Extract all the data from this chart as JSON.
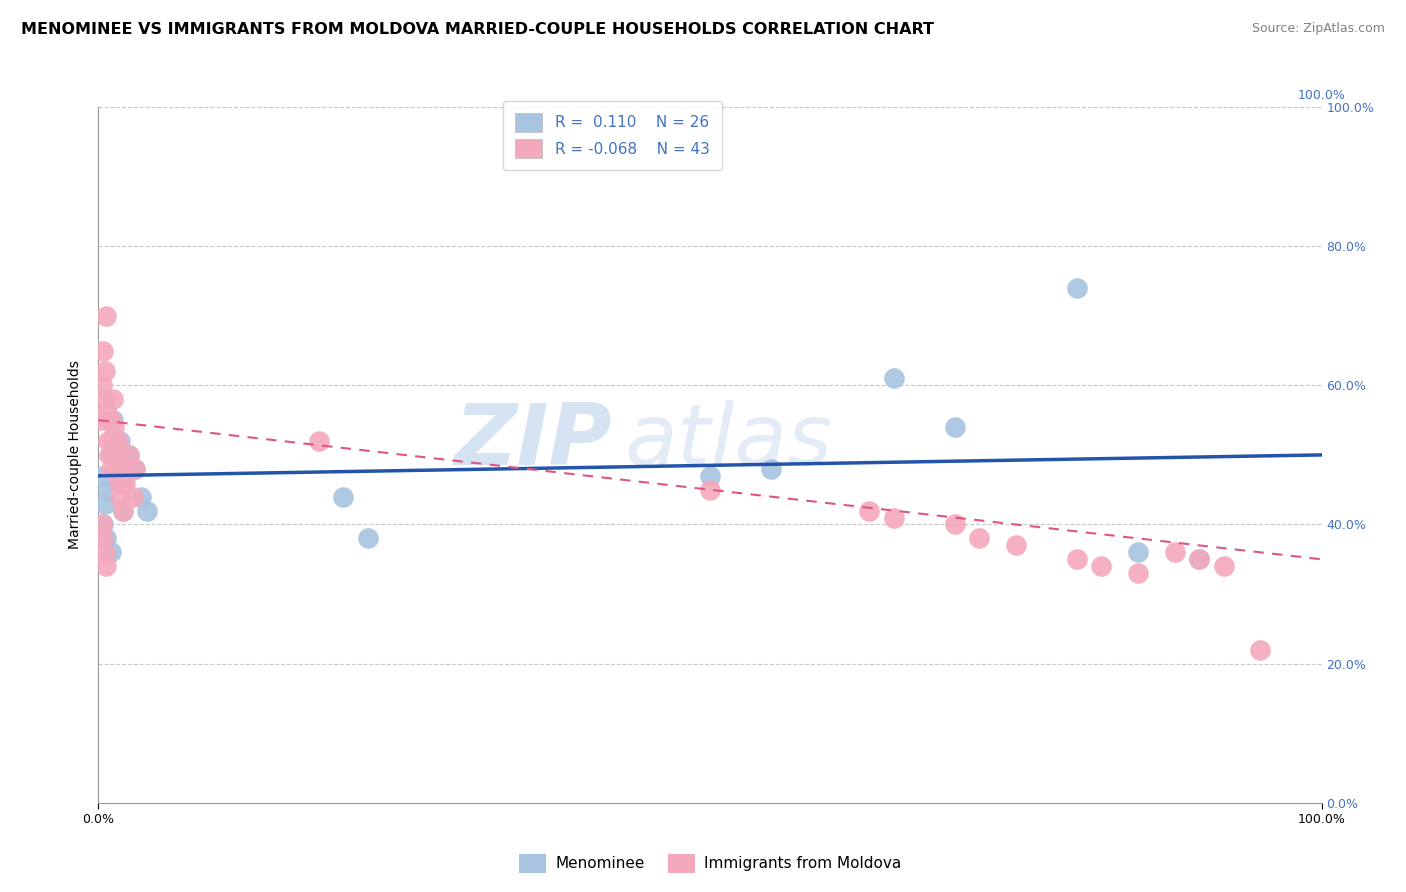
{
  "title": "MENOMINEE VS IMMIGRANTS FROM MOLDOVA MARRIED-COUPLE HOUSEHOLDS CORRELATION CHART",
  "source": "Source: ZipAtlas.com",
  "ylabel": "Married-couple Households",
  "legend_label1": "Menominee",
  "legend_label2": "Immigrants from Moldova",
  "R1": 0.11,
  "N1": 26,
  "R2": -0.068,
  "N2": 43,
  "blue_x": [
    0.3,
    0.5,
    0.8,
    1.0,
    1.2,
    1.5,
    1.8,
    2.0,
    2.5,
    3.0,
    3.5,
    4.0,
    0.4,
    0.6,
    1.0,
    1.5,
    2.0,
    20.0,
    22.0,
    50.0,
    55.0,
    65.0,
    70.0,
    80.0,
    85.0,
    90.0
  ],
  "blue_y": [
    47.0,
    43.0,
    45.0,
    50.0,
    55.0,
    48.0,
    52.0,
    46.0,
    50.0,
    48.0,
    44.0,
    42.0,
    40.0,
    38.0,
    36.0,
    46.0,
    42.0,
    44.0,
    38.0,
    47.0,
    48.0,
    61.0,
    54.0,
    74.0,
    36.0,
    35.0
  ],
  "pink_x": [
    0.2,
    0.3,
    0.4,
    0.5,
    0.5,
    0.6,
    0.7,
    0.8,
    0.9,
    1.0,
    1.0,
    1.1,
    1.2,
    1.3,
    1.4,
    1.5,
    1.6,
    1.7,
    1.8,
    2.0,
    2.0,
    2.2,
    2.5,
    2.8,
    3.0,
    0.3,
    0.4,
    0.5,
    0.6,
    18.0,
    50.0,
    63.0,
    65.0,
    70.0,
    72.0,
    75.0,
    80.0,
    82.0,
    85.0,
    88.0,
    90.0,
    92.0,
    95.0
  ],
  "pink_y": [
    55.0,
    60.0,
    65.0,
    62.0,
    58.0,
    70.0,
    56.0,
    52.0,
    50.0,
    48.0,
    55.0,
    52.0,
    58.0,
    54.0,
    50.0,
    48.0,
    52.0,
    46.0,
    44.0,
    42.0,
    48.0,
    46.0,
    50.0,
    44.0,
    48.0,
    40.0,
    38.0,
    36.0,
    34.0,
    52.0,
    45.0,
    42.0,
    41.0,
    40.0,
    38.0,
    37.0,
    35.0,
    34.0,
    33.0,
    36.0,
    35.0,
    34.0,
    22.0
  ],
  "blue_line_start_y": 47.0,
  "blue_line_end_y": 50.0,
  "pink_line_start_y": 55.0,
  "pink_line_end_y": 35.0,
  "blue_color": "#a8c4e0",
  "pink_color": "#f4a8bc",
  "blue_line_color": "#2255aa",
  "pink_line_color": "#e05580",
  "background_color": "#ffffff",
  "xlim": [
    0,
    100
  ],
  "ylim": [
    0,
    100
  ],
  "ytick_values": [
    0,
    20,
    40,
    60,
    80,
    100
  ],
  "grid_color": "#c8c8c8",
  "title_fontsize": 11.5,
  "source_fontsize": 9
}
